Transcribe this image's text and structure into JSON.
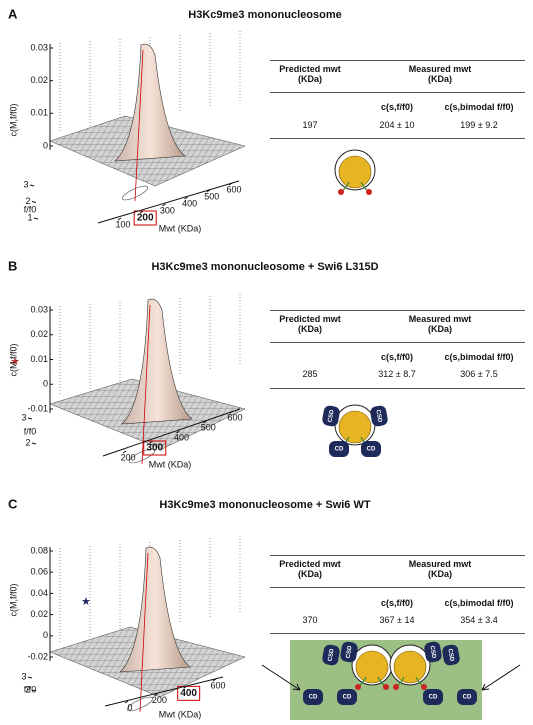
{
  "panels": [
    {
      "label": "A",
      "title": "H3Kc9me3 mononucleosome",
      "plot": {
        "zlabel": "c(M,f/f0)",
        "zticks": [
          0.03,
          0.02,
          0.01,
          0
        ],
        "ylabel": "f/f0",
        "yticks": [
          3,
          2,
          1
        ],
        "xlabel": "Mwt (KDa)",
        "xticks": [
          100,
          200,
          300,
          400,
          500,
          600
        ],
        "boxed_tick": 1
      },
      "table": {
        "headers": [
          "Predicted mwt (KDa)",
          "Measured mwt (KDa)"
        ],
        "subheaders": [
          "c(s,f/f0)",
          "c(s,bimodal f/f0)"
        ],
        "row": [
          "197",
          "204 ± 10",
          "199 ± 9.2"
        ]
      },
      "diagram": {
        "labels": []
      }
    },
    {
      "label": "B",
      "title": "H3Kc9me3 mononucleosome + Swi6 L315D",
      "plot": {
        "zlabel": "c(M,f/f0)",
        "zticks": [
          0.03,
          0.02,
          0.01,
          0,
          -0.01
        ],
        "ylabel": "f/f0",
        "yticks": [
          3,
          2
        ],
        "xlabel": "Mwt (KDa)",
        "xticks": [
          200,
          300,
          400,
          500,
          600
        ],
        "boxed_tick": 1
      },
      "table": {
        "headers": [
          "Predicted mwt (KDa)",
          "Measured mwt (KDa)"
        ],
        "subheaders": [
          "c(s,f/f0)",
          "c(s,bimodal f/f0)"
        ],
        "row": [
          "285",
          "312 ± 8.7",
          "306 ± 7.5"
        ]
      },
      "diagram": {
        "labels": [
          "CSD",
          "CSD",
          "CD",
          "CD"
        ]
      }
    },
    {
      "label": "C",
      "title": "H3Kc9me3 mononucleosome + Swi6 WT",
      "plot": {
        "zlabel": "c(M,f/f0)",
        "zticks": [
          0.08,
          0.06,
          0.04,
          0.02,
          0,
          -0.02
        ],
        "ylabel": "f/f0",
        "yticks": [
          3,
          2
        ],
        "xlabel": "Mwt (KDa)",
        "xticks": [
          0,
          200,
          400,
          600
        ],
        "boxed_tick": 2
      },
      "table": {
        "headers": [
          "Predicted mwt (KDa)",
          "Measured mwt (KDa)"
        ],
        "subheaders": [
          "c(s,f/f0)",
          "c(s,bimodal f/f0)"
        ],
        "row": [
          "370",
          "367 ± 14",
          "354 ± 3.4"
        ]
      },
      "diagram": {
        "labels": [
          "CSD",
          "CSD",
          "CSD",
          "CSD",
          "CD",
          "CD",
          "CD",
          "CD"
        ]
      }
    }
  ]
}
